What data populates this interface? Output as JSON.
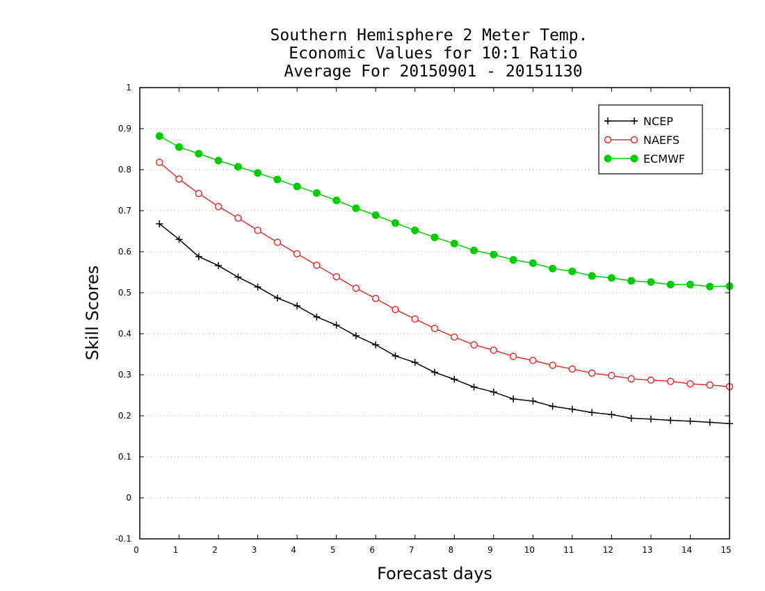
{
  "chart_data": {
    "type": "line",
    "title_lines": [
      "Southern Hemisphere 2 Meter Temp.",
      "Economic Values for 10:1 Ratio",
      "Average For 20150901 - 20151130"
    ],
    "xlabel": "Forecast days",
    "ylabel": "Skill Scores",
    "xlim": [
      0,
      15
    ],
    "ylim": [
      -0.1,
      1
    ],
    "x_ticks": [
      "0",
      "1",
      "2",
      "3",
      "4",
      "5",
      "6",
      "7",
      "8",
      "9",
      "10",
      "11",
      "12",
      "13",
      "14",
      "15"
    ],
    "y_ticks": [
      "-0.1",
      "0",
      "0.1",
      "0.2",
      "0.3",
      "0.4",
      "0.5",
      "0.6",
      "0.7",
      "0.8",
      "0.9",
      "1"
    ],
    "grid": "horizontal dotted",
    "legend_position": "top-right",
    "x": [
      0.5,
      1,
      1.5,
      2,
      2.5,
      3,
      3.5,
      4,
      4.5,
      5,
      5.5,
      6,
      6.5,
      7,
      7.5,
      8,
      8.5,
      9,
      9.5,
      10,
      10.5,
      11,
      11.5,
      12,
      12.5,
      13,
      13.5,
      14,
      14.5,
      15
    ],
    "series": [
      {
        "name": "NCEP",
        "color": "#000000",
        "marker": "plus",
        "values": [
          0.668,
          0.63,
          0.588,
          0.566,
          0.538,
          0.514,
          0.487,
          0.468,
          0.441,
          0.421,
          0.395,
          0.373,
          0.346,
          0.33,
          0.306,
          0.289,
          0.27,
          0.258,
          0.241,
          0.236,
          0.223,
          0.216,
          0.208,
          0.203,
          0.194,
          0.192,
          0.189,
          0.187,
          0.184,
          0.181
        ]
      },
      {
        "name": "NAEFS",
        "color": "#e03030",
        "marker": "open-circle",
        "values": [
          0.818,
          0.777,
          0.742,
          0.71,
          0.682,
          0.652,
          0.623,
          0.595,
          0.567,
          0.539,
          0.511,
          0.486,
          0.459,
          0.436,
          0.413,
          0.392,
          0.373,
          0.36,
          0.345,
          0.335,
          0.323,
          0.314,
          0.304,
          0.298,
          0.29,
          0.287,
          0.284,
          0.278,
          0.275,
          0.271
        ]
      },
      {
        "name": "ECMWF",
        "color": "#00cc00",
        "marker": "filled-circle",
        "values": [
          0.882,
          0.855,
          0.839,
          0.822,
          0.807,
          0.792,
          0.776,
          0.759,
          0.743,
          0.725,
          0.706,
          0.689,
          0.67,
          0.652,
          0.635,
          0.62,
          0.603,
          0.593,
          0.58,
          0.572,
          0.559,
          0.552,
          0.541,
          0.536,
          0.529,
          0.526,
          0.52,
          0.52,
          0.515,
          0.516
        ]
      }
    ]
  }
}
